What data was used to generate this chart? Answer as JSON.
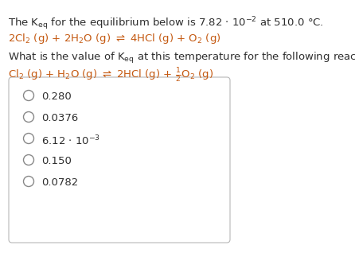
{
  "bg_color": "#ffffff",
  "text_color": "#2e2e2e",
  "orange_color": "#c45911",
  "box_edge_color": "#b8b8b8",
  "circle_edge_color": "#888888",
  "font_size": 9.5,
  "sub_font_size": 7.5,
  "options": [
    "0.280",
    "0.0376",
    "6.12 · 10⁻³",
    "0.150",
    "0.0782"
  ]
}
